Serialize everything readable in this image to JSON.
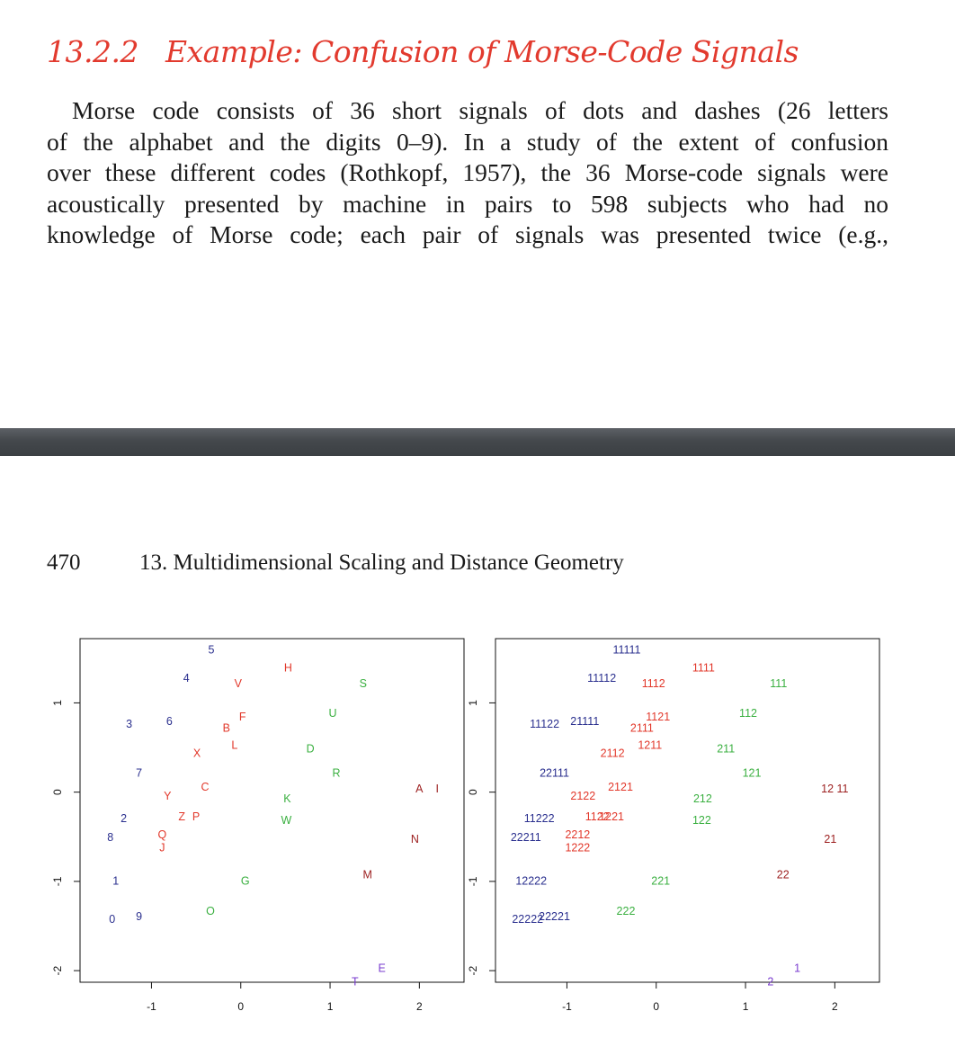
{
  "section": {
    "number": "13.2.2",
    "title": "Example: Confusion of Morse-Code Signals"
  },
  "body_lines": [
    "Morse code consists of 36 short signals of dots and dashes (26 letters",
    "of the alphabet and the digits 0–9). In a study of the extent of confusion",
    "over these different codes (Rothkopf, 1957), the 36 Morse-code signals were",
    "acoustically presented by machine in pairs to 598 subjects who had no",
    "knowledge of Morse code; each pair of signals was presented twice (e.g.,"
  ],
  "running_head": {
    "page_number": "470",
    "title": "13.  Multidimensional Scaling and Distance Geometry"
  },
  "colors": {
    "heading": "#e23a2e",
    "navy": "#2a2f8e",
    "red": "#e2382b",
    "green": "#3bb041",
    "maroon": "#9c1e1e",
    "purple": "#7a3ccf"
  },
  "chart_data": [
    {
      "type": "scatter",
      "title": "",
      "xlabel": "",
      "ylabel": "",
      "xlim": [
        -1.8,
        2.5
      ],
      "ylim": [
        -2.13,
        1.72
      ],
      "xticks": [
        -1,
        0,
        1,
        2
      ],
      "yticks": [
        -2,
        -1,
        0,
        1
      ],
      "grid": false,
      "points": [
        {
          "label": "5",
          "x": -0.33,
          "y": 1.6,
          "color": "navy"
        },
        {
          "label": "4",
          "x": -0.61,
          "y": 1.28,
          "color": "navy"
        },
        {
          "label": "V",
          "x": -0.03,
          "y": 1.22,
          "color": "red"
        },
        {
          "label": "H",
          "x": 0.53,
          "y": 1.4,
          "color": "red"
        },
        {
          "label": "S",
          "x": 1.37,
          "y": 1.22,
          "color": "green"
        },
        {
          "label": "3",
          "x": -1.25,
          "y": 0.77,
          "color": "navy"
        },
        {
          "label": "6",
          "x": -0.8,
          "y": 0.8,
          "color": "navy"
        },
        {
          "label": "F",
          "x": 0.02,
          "y": 0.85,
          "color": "red"
        },
        {
          "label": "B",
          "x": -0.16,
          "y": 0.72,
          "color": "red"
        },
        {
          "label": "U",
          "x": 1.03,
          "y": 0.89,
          "color": "green"
        },
        {
          "label": "L",
          "x": -0.07,
          "y": 0.53,
          "color": "red"
        },
        {
          "label": "X",
          "x": -0.49,
          "y": 0.44,
          "color": "red"
        },
        {
          "label": "D",
          "x": 0.78,
          "y": 0.49,
          "color": "green"
        },
        {
          "label": "7",
          "x": -1.14,
          "y": 0.22,
          "color": "navy"
        },
        {
          "label": "R",
          "x": 1.07,
          "y": 0.22,
          "color": "green"
        },
        {
          "label": "C",
          "x": -0.4,
          "y": 0.06,
          "color": "red"
        },
        {
          "label": "Y",
          "x": -0.82,
          "y": -0.04,
          "color": "red"
        },
        {
          "label": "K",
          "x": 0.52,
          "y": -0.07,
          "color": "green"
        },
        {
          "label": "A",
          "x": 2.0,
          "y": 0.04,
          "color": "maroon"
        },
        {
          "label": "I",
          "x": 2.2,
          "y": 0.04,
          "color": "maroon"
        },
        {
          "label": "2",
          "x": -1.31,
          "y": -0.29,
          "color": "navy"
        },
        {
          "label": "Z",
          "x": -0.66,
          "y": -0.27,
          "color": "red"
        },
        {
          "label": "P",
          "x": -0.5,
          "y": -0.27,
          "color": "red"
        },
        {
          "label": "W",
          "x": 0.51,
          "y": -0.31,
          "color": "green"
        },
        {
          "label": "8",
          "x": -1.46,
          "y": -0.5,
          "color": "navy"
        },
        {
          "label": "Q",
          "x": -0.88,
          "y": -0.47,
          "color": "red"
        },
        {
          "label": "N",
          "x": 1.95,
          "y": -0.52,
          "color": "maroon"
        },
        {
          "label": "J",
          "x": -0.88,
          "y": -0.62,
          "color": "red"
        },
        {
          "label": "M",
          "x": 1.42,
          "y": -0.92,
          "color": "maroon"
        },
        {
          "label": "1",
          "x": -1.4,
          "y": -0.99,
          "color": "navy"
        },
        {
          "label": "G",
          "x": 0.05,
          "y": -0.99,
          "color": "green"
        },
        {
          "label": "O",
          "x": -0.34,
          "y": -1.33,
          "color": "green"
        },
        {
          "label": "0",
          "x": -1.44,
          "y": -1.42,
          "color": "navy"
        },
        {
          "label": "9",
          "x": -1.14,
          "y": -1.39,
          "color": "navy"
        },
        {
          "label": "E",
          "x": 1.58,
          "y": -1.97,
          "color": "purple"
        },
        {
          "label": "T",
          "x": 1.28,
          "y": -2.12,
          "color": "purple"
        }
      ]
    },
    {
      "type": "scatter",
      "title": "",
      "xlabel": "",
      "ylabel": "",
      "xlim": [
        -1.8,
        2.5
      ],
      "ylim": [
        -2.13,
        1.72
      ],
      "xticks": [
        -1,
        0,
        1,
        2
      ],
      "yticks": [
        -2,
        -1,
        0,
        1
      ],
      "grid": false,
      "points": [
        {
          "label": "11111",
          "x": -0.33,
          "y": 1.6,
          "color": "navy"
        },
        {
          "label": "11112",
          "x": -0.61,
          "y": 1.28,
          "color": "navy"
        },
        {
          "label": "1112",
          "x": -0.03,
          "y": 1.22,
          "color": "red"
        },
        {
          "label": "1111",
          "x": 0.53,
          "y": 1.4,
          "color": "red"
        },
        {
          "label": "111",
          "x": 1.37,
          "y": 1.22,
          "color": "green"
        },
        {
          "label": "11122",
          "x": -1.25,
          "y": 0.77,
          "color": "navy"
        },
        {
          "label": "21111",
          "x": -0.8,
          "y": 0.8,
          "color": "navy"
        },
        {
          "label": "1121",
          "x": 0.02,
          "y": 0.85,
          "color": "red"
        },
        {
          "label": "2111",
          "x": -0.16,
          "y": 0.72,
          "color": "red"
        },
        {
          "label": "112",
          "x": 1.03,
          "y": 0.89,
          "color": "green"
        },
        {
          "label": "1211",
          "x": -0.07,
          "y": 0.53,
          "color": "red"
        },
        {
          "label": "2112",
          "x": -0.49,
          "y": 0.44,
          "color": "red"
        },
        {
          "label": "211",
          "x": 0.78,
          "y": 0.49,
          "color": "green"
        },
        {
          "label": "22111",
          "x": -1.14,
          "y": 0.22,
          "color": "navy"
        },
        {
          "label": "121",
          "x": 1.07,
          "y": 0.22,
          "color": "green"
        },
        {
          "label": "2121",
          "x": -0.4,
          "y": 0.06,
          "color": "red"
        },
        {
          "label": "2122",
          "x": -0.82,
          "y": -0.04,
          "color": "red"
        },
        {
          "label": "212",
          "x": 0.52,
          "y": -0.07,
          "color": "green"
        },
        {
          "label": "12 11",
          "x": 2.0,
          "y": 0.04,
          "color": "maroon"
        },
        {
          "label": "11222",
          "x": -1.31,
          "y": -0.29,
          "color": "navy"
        },
        {
          "label": "1122",
          "x": -0.66,
          "y": -0.27,
          "color": "red"
        },
        {
          "label": "1221",
          "x": -0.5,
          "y": -0.27,
          "color": "red"
        },
        {
          "label": "122",
          "x": 0.51,
          "y": -0.31,
          "color": "green"
        },
        {
          "label": "22211",
          "x": -1.46,
          "y": -0.5,
          "color": "navy"
        },
        {
          "label": "2212",
          "x": -0.88,
          "y": -0.47,
          "color": "red"
        },
        {
          "label": "21",
          "x": 1.95,
          "y": -0.52,
          "color": "maroon"
        },
        {
          "label": "1222",
          "x": -0.88,
          "y": -0.62,
          "color": "red"
        },
        {
          "label": "22",
          "x": 1.42,
          "y": -0.92,
          "color": "maroon"
        },
        {
          "label": "12222",
          "x": -1.4,
          "y": -0.99,
          "color": "navy"
        },
        {
          "label": "221",
          "x": 0.05,
          "y": -0.99,
          "color": "green"
        },
        {
          "label": "222",
          "x": -0.34,
          "y": -1.33,
          "color": "green"
        },
        {
          "label": "22222",
          "x": -1.44,
          "y": -1.42,
          "color": "navy"
        },
        {
          "label": "22221",
          "x": -1.14,
          "y": -1.39,
          "color": "navy"
        },
        {
          "label": "1",
          "x": 1.58,
          "y": -1.97,
          "color": "purple"
        },
        {
          "label": "2",
          "x": 1.28,
          "y": -2.12,
          "color": "purple"
        }
      ]
    }
  ]
}
